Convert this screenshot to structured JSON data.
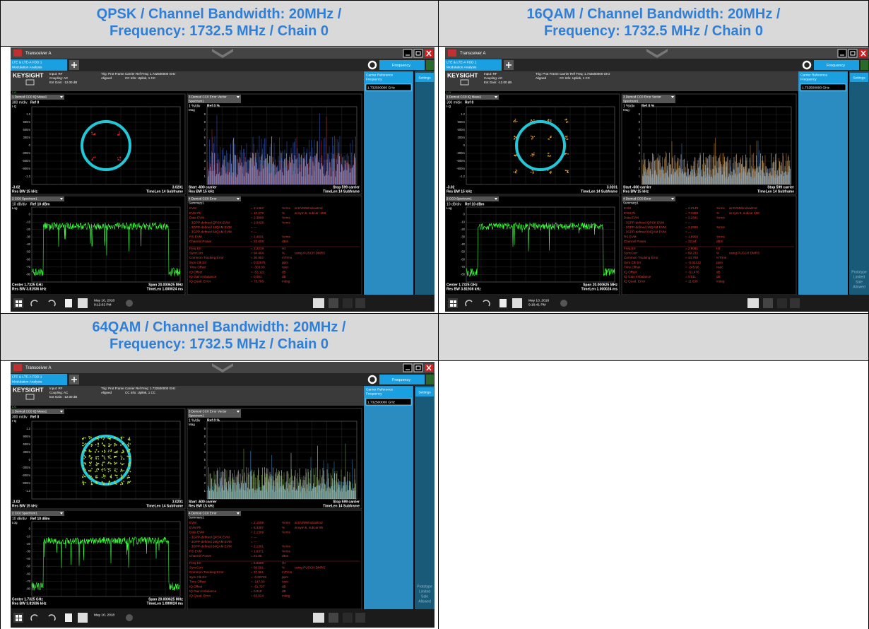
{
  "panels": [
    {
      "heading": [
        "QPSK / Channel Bandwidth: 20MHz /",
        "Frequency: 1732.5 MHz / Chain 0"
      ],
      "screen": {
        "window_title": "Transceiver A",
        "mode": [
          "LTE & LTE-A FDD 1",
          "Modulation Analysis"
        ],
        "brand": "KEYSIGHT",
        "input": [
          "Input: RF",
          "Coupling: AC",
          "Ext Gain: -12.00 dB"
        ],
        "trig": [
          "Trig: Prot Frame",
          "Aligned"
        ],
        "carrier": [
          "Carrier Ref Freq: 1.732500000 GHz",
          "CC Info: Uplink, 1 CC"
        ],
        "lxi": "LXI",
        "frequency": "Frequency",
        "ref_label": [
          "Carrier Reference",
          "Frequency"
        ],
        "ref_value": "1.732500000 GHz",
        "settings": "Settings",
        "w1": {
          "title": "1 Demod CC0 IQ Meas1",
          "scale": "300 m/div",
          "ref": "Ref 0",
          "axis": "I-Q",
          "yticks": [
            "1.2",
            "900m",
            "600m",
            "300m",
            "0",
            "-300m",
            "-600m",
            "-900m",
            "-1.2"
          ],
          "left": "-3.02",
          "right": "3.0201",
          "resbw": "Res BW 15 kHz",
          "timelen": "TimeLen 14 Subframe"
        },
        "w3": {
          "title": [
            "3 Demod CC0 Error Vector",
            "Spectrum1"
          ],
          "scale": "1 %/div",
          "ref": "Ref 0 %",
          "axis": "Mag",
          "yticks": [
            "9",
            "8",
            "7",
            "6",
            "5",
            "4",
            "3",
            "2",
            "1"
          ],
          "left": "Start -600 carrier",
          "right": "Stop 599 carrier",
          "resbw": "Res BW 15 kHz",
          "timelen": "TimeLen 14 Subframe"
        },
        "w2": {
          "title": "2 CC0 Spectrum1",
          "scale": "10 dB/div",
          "ref": "Ref 10 dBm",
          "axis": "Log",
          "yticks": [
            "0",
            "-10",
            "-20",
            "-30",
            "-40",
            "-50",
            "-60",
            "-70",
            "-80"
          ],
          "left": "Center 1.7325 GHz",
          "right": "Span 20.000625 MHz",
          "resbw": "Res BW 3.81936 kHz",
          "timelen": "TimeLen 1.000024 ms"
        },
        "w4": {
          "title": [
            "4 Demod CC0 Error",
            "Summary1"
          ],
          "rows": [
            [
              "EVM",
              "= 2.1462",
              "%rms",
              "at  EVMWindowEnd"
            ],
            [
              "EVM Pk",
              "= 10.279",
              "%",
              "at  sym 6,  subcar -158"
            ],
            [
              "Data EVM",
              "= 2.3098",
              "%rms"
            ],
            [
              "- 3GPP-defined QPSK EVM",
              "= 2.0428",
              "%rms"
            ],
            [
              "- 3GPP-defined 16QAM EVM",
              "= ---"
            ],
            [
              "- 3GPP-defined 64QAM EVM",
              "= ---"
            ],
            [
              "RS EVM",
              "= 2.4631",
              "%rms"
            ],
            [
              "Channel Power",
              "= 23.608",
              "dBm"
            ],
            [
              "Freq Err",
              "= 2.2219",
              "Hz"
            ],
            [
              "SyncCorr",
              "= 94.404",
              "%",
              "using  PUSCH DMRS"
            ],
            [
              "Common Tracking Error",
              "= 30.952",
              "mTrms"
            ],
            [
              "Sym Clk Err",
              "= 0.02575",
              "ppm"
            ],
            [
              "Time Offset",
              "= -303.60",
              "nsec"
            ],
            [
              "IQ Offset",
              "= -53.121",
              "dB"
            ],
            [
              "IQ Gain Imbalance",
              "= 0.001",
              "dB"
            ],
            [
              "IQ Quad. Error",
              "= 73.788",
              "mdeg"
            ]
          ]
        },
        "date": [
          "May 10, 2018",
          "9:12:02 PM"
        ]
      }
    },
    {
      "heading": [
        "16QAM / Channel Bandwidth: 20MHz /",
        "Frequency: 1732.5 MHz / Chain 0"
      ],
      "screen": {
        "window_title": "Transceiver A",
        "mode": [
          "LTE & LTE-A FDD 1",
          "Modulation Analysis"
        ],
        "brand": "KEYSIGHT",
        "input": [
          "Input: RF",
          "Coupling: AC",
          "Ext Gain: -12.00 dB"
        ],
        "trig": [
          "Trig: Prot Frame",
          "Aligned"
        ],
        "carrier": [
          "Carrier Ref Freq: 1.732500000 GHz",
          "CC Info: Uplink, 1 CC"
        ],
        "lxi": "LXI",
        "frequency": "Frequency",
        "ref_label": [
          "Carrier Reference",
          "Frequency"
        ],
        "ref_value": "1.732500000 GHz",
        "settings": "Settings",
        "w1": {
          "title": "1 Demod CC0 IQ Meas1",
          "scale": "300 m/div",
          "ref": "Ref 0",
          "axis": "I-Q",
          "yticks": [
            "1.2",
            "900m",
            "600m",
            "300m",
            "0",
            "-300m",
            "-600m",
            "-900m",
            "-1.2"
          ],
          "left": "-3.02",
          "right": "3.0201",
          "resbw": "Res BW 15 kHz",
          "timelen": "TimeLen 14 Subframe"
        },
        "w3": {
          "title": [
            "3 Demod CC0 Error Vector",
            "Spectrum1"
          ],
          "scale": "1 %/div",
          "ref": "Ref 0 %",
          "axis": "Mag",
          "yticks": [
            "9",
            "8",
            "7",
            "6",
            "5",
            "4",
            "3",
            "2",
            "1"
          ],
          "left": "Start -600 carrier",
          "right": "Stop 599 carrier",
          "resbw": "Res BW 15 kHz",
          "timelen": "TimeLen 14 Subframe"
        },
        "w2": {
          "title": "2 CC0 Spectrum1",
          "scale": "10 dB/div",
          "ref": "Ref 10 dBm",
          "axis": "Log",
          "yticks": [
            "0",
            "-10",
            "-20",
            "-30",
            "-40",
            "-50",
            "-60",
            "-70",
            "-80"
          ],
          "left": "Center 1.7325 GHz",
          "right": "Span 20.000625 MHz",
          "resbw": "Res BW 3.81936 kHz",
          "timelen": "TimeLen 1.000024 ms"
        },
        "w4": {
          "title": [
            "4 Demod CC0 Error",
            "Summary1"
          ],
          "rows": [
            [
              "EVM",
              "= 2.2149",
              "%rms",
              "at  EVMWindowEnd"
            ],
            [
              "EVM Pk",
              "= 7.3358",
              "%",
              "at  sym 6,  subcar 468"
            ],
            [
              "Data EVM",
              "= 2.2641",
              "%rms"
            ],
            [
              "- 3GPP-defined QPSK EVM",
              "= ---"
            ],
            [
              "- 3GPP-defined 16QAM EVM",
              "= 2.2695",
              "%rms"
            ],
            [
              "- 3GPP-defined 64QAM EVM",
              "= ---"
            ],
            [
              "RS EVM",
              "= 1.8958",
              "%rms"
            ],
            [
              "Channel Power",
              "= 22.84",
              "dBm"
            ],
            [
              "Freq Err",
              "= 2.9061",
              "Hz"
            ],
            [
              "SyncCorr",
              "= 99.232",
              "%",
              "using  PUSCH DMRS"
            ],
            [
              "Common Tracking Error",
              "= 44.768",
              "mTrms"
            ],
            [
              "Sym Clk Err",
              "= -0.02122",
              "ppm"
            ],
            [
              "Time Offset",
              "= -245.96",
              "nsec"
            ],
            [
              "IQ Offset",
              "= -51.476",
              "dB"
            ],
            [
              "IQ Gain Imbalance",
              "= 0.011",
              "dB"
            ],
            [
              "IQ Quad. Error",
              "= 11.638",
              "mdeg"
            ]
          ]
        },
        "date": [
          "May 10, 2018",
          "9:16:41 PM"
        ],
        "watermark": [
          "Prototype",
          "Limited",
          "Sale",
          "Allowed"
        ]
      }
    },
    {
      "heading": [
        "64QAM / Channel Bandwidth: 20MHz /",
        "Frequency: 1732.5 MHz / Chain 0"
      ],
      "screen": {
        "window_title": "Transceiver A",
        "mode": [
          "LTE & LTE-A FDD 1",
          "Modulation Analysis"
        ],
        "brand": "KEYSIGHT",
        "input": [
          "Input: RF",
          "Coupling: AC",
          "Ext Gain: -12.00 dB"
        ],
        "trig": [
          "Trig: Prot Frame",
          "Aligned"
        ],
        "carrier": [
          "Carrier Ref Freq: 1.732500000 GHz",
          "CC Info: Uplink, 1 CC"
        ],
        "lxi": "LXI",
        "frequency": "Frequency",
        "ref_label": [
          "Carrier Reference",
          "Frequency"
        ],
        "ref_value": "1.732500000 GHz",
        "settings": "Settings",
        "w1": {
          "title": "1 Demod CC0 IQ Meas1",
          "scale": "300 m/div",
          "ref": "Ref 0",
          "axis": "I-Q",
          "yticks": [
            "1.2",
            "900m",
            "600m",
            "300m",
            "0",
            "-300m",
            "-600m",
            "-900m",
            "-1.2"
          ],
          "left": "-3.02",
          "right": "3.0201",
          "resbw": "Res BW 15 kHz",
          "timelen": "TimeLen 14 Subframe"
        },
        "w3": {
          "title": [
            "3 Demod CC0 Error Vector",
            "Spectrum1"
          ],
          "scale": "1 %/div",
          "ref": "Ref 0 %",
          "axis": "Mag",
          "yticks": [
            "9",
            "8",
            "7",
            "6",
            "5",
            "4",
            "3",
            "2",
            "1"
          ],
          "left": "Start -600 carrier",
          "right": "Stop 599 carrier",
          "resbw": "Res BW 15 kHz",
          "timelen": "TimeLen 14 Subframe"
        },
        "w2": {
          "title": "2 CC0 Spectrum1",
          "scale": "10 dB/div",
          "ref": "Ref 10 dBm",
          "axis": "Log",
          "yticks": [
            "0",
            "-10",
            "-20",
            "-30",
            "-40",
            "-50",
            "-60",
            "-70",
            "-80"
          ],
          "left": "Center 1.7325 GHz",
          "right": "Span 20.000625 MHz",
          "resbw": "Res BW 3.81936 kHz",
          "timelen": "TimeLen 1.000024 ms"
        },
        "w4": {
          "title": [
            "4 Demod CC0 Error",
            "Summary1"
          ],
          "rows": [
            [
              "EVM",
              "= 2.1508",
              "%rms",
              "at  EVMWindowEnd"
            ],
            [
              "EVM Pk",
              "= 8.3397",
              "%",
              "at  sym 6,  subcar 95"
            ],
            [
              "Data EVM",
              "= 2.1309",
              "%rms"
            ],
            [
              "- 3GPP-defined QPSK EVM",
              "= ---"
            ],
            [
              "- 3GPP-defined 16QAM EVM",
              "= ---"
            ],
            [
              "- 3GPP-defined 64QAM EVM",
              "= 2.1301",
              "%rms"
            ],
            [
              "RS EVM",
              "= 1.9371",
              "%rms"
            ],
            [
              "Channel Power",
              "= 21.85",
              "dBm"
            ],
            [
              "Freq Err",
              "= 6.6899",
              "Hz"
            ],
            [
              "SyncCorr",
              "= 99.591",
              "%",
              "using  PUSCH DMRS"
            ],
            [
              "Common Tracking Error",
              "= 37.961",
              "mTrms"
            ],
            [
              "Sym Clk Err",
              "= -0.00726",
              "ppm"
            ],
            [
              "Time Offset",
              "= -147.30",
              "nsec"
            ],
            [
              "IQ Offset",
              "= -51.727",
              "dB"
            ],
            [
              "IQ Gain Imbalance",
              "= 0.018",
              "dB"
            ],
            [
              "IQ Quad. Error",
              "= 63.024",
              "mdeg"
            ]
          ]
        },
        "date": [
          "May 10, 2018"
        ],
        "watermark": [
          "Prototype",
          "Limited",
          "Sale",
          "Allowed"
        ]
      }
    }
  ]
}
